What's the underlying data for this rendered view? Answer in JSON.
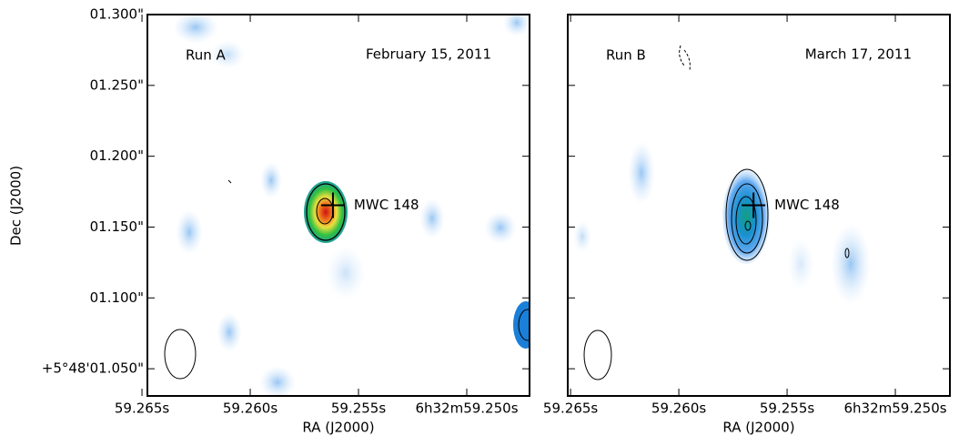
{
  "chart_data": [
    {
      "type": "image",
      "title": "Run A",
      "subtitle": "February 15, 2011",
      "xlabel": "RA (J2000)",
      "ylabel": "Dec (J2000)",
      "annotation": "MWC 148",
      "marker": {
        "x": 59.25618,
        "y": 1.1654
      },
      "xlim": [
        59.26475,
        59.2471
      ],
      "ylim": [
        1.0308,
        1.3
      ],
      "xticks": [
        {
          "value": 59.265,
          "label": "59.265s"
        },
        {
          "value": 59.26,
          "label": "59.260s"
        },
        {
          "value": 59.255,
          "label": "59.255s"
        },
        {
          "value": 59.25,
          "label": "6h32m59.250s"
        }
      ],
      "yticks": [
        {
          "value": 1.05,
          "label": "+5°48'01.050\""
        },
        {
          "value": 1.1,
          "label": "01.100\""
        },
        {
          "value": 1.15,
          "label": "01.150\""
        },
        {
          "value": 1.2,
          "label": "01.200\""
        },
        {
          "value": 1.25,
          "label": "01.250\""
        },
        {
          "value": 1.3,
          "label": "01.300\""
        }
      ]
    },
    {
      "type": "image",
      "title": "Run B",
      "subtitle": "March 17, 2011",
      "xlabel": "RA (J2000)",
      "annotation": "MWC 148",
      "marker": {
        "x": 59.25655,
        "y": 1.1654
      },
      "xlim": [
        59.26513,
        59.24748
      ],
      "ylim": [
        1.0308,
        1.3
      ],
      "xticks": [
        {
          "value": 59.265,
          "label": "59.265s"
        },
        {
          "value": 59.26,
          "label": "59.260s"
        },
        {
          "value": 59.255,
          "label": "59.255s"
        },
        {
          "value": 59.25,
          "label": "6h32m59.250s"
        }
      ],
      "yticks": [
        1.05,
        1.1,
        1.15,
        1.2,
        1.25,
        1.3
      ]
    }
  ]
}
